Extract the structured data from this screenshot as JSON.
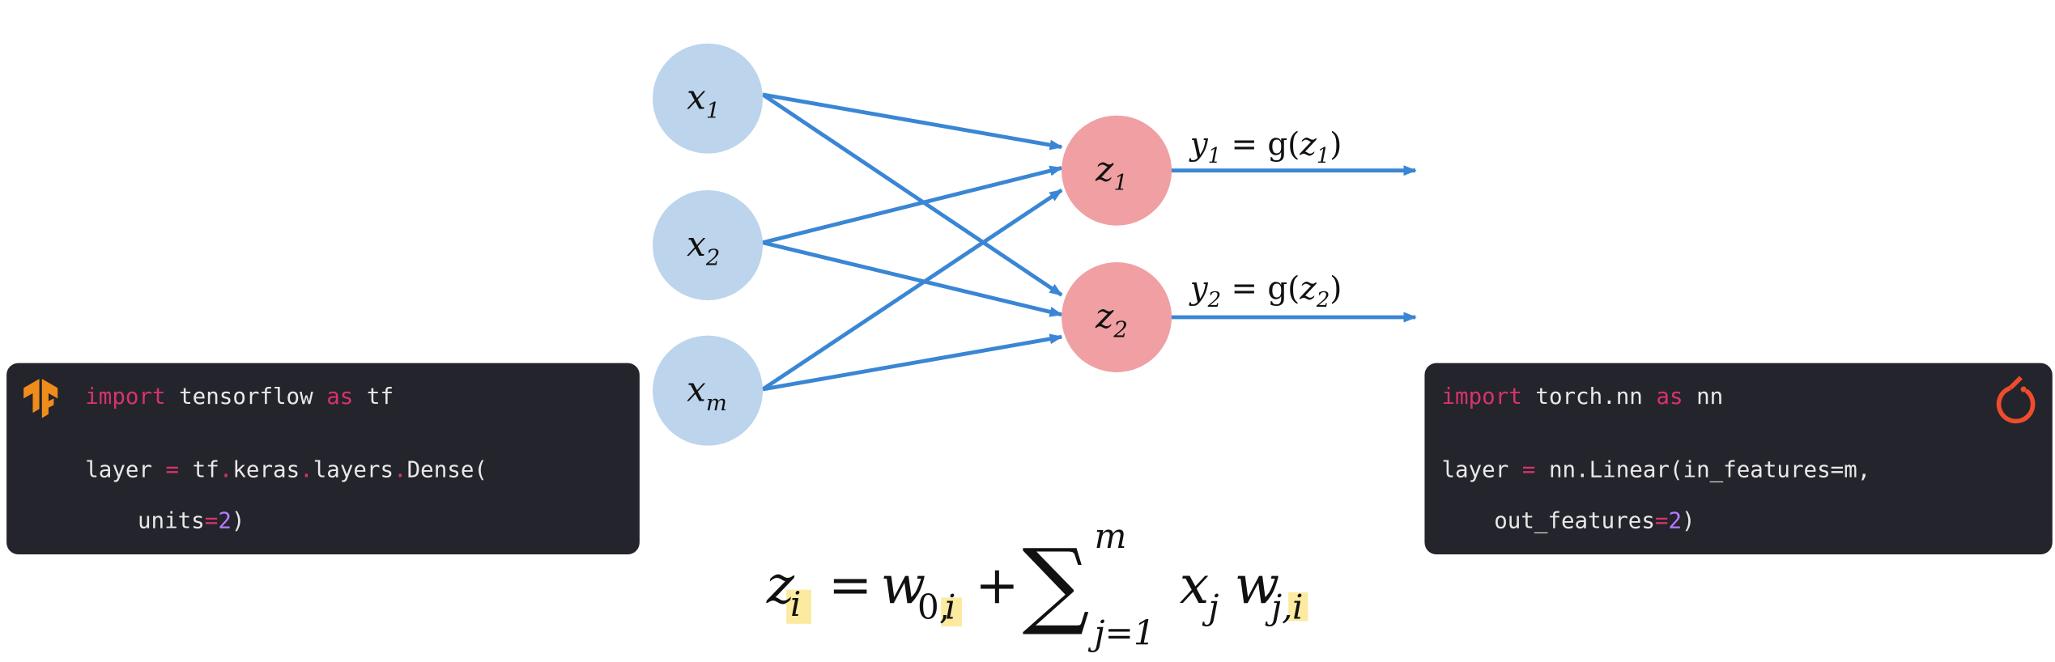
{
  "nodes": [
    {
      "label": "x",
      "sub": "1"
    },
    {
      "label": "x",
      "sub": "2"
    },
    {
      "label": "x",
      "sub": "m"
    },
    {
      "label": "z",
      "sub": "1"
    },
    {
      "label": "z",
      "sub": "2"
    }
  ],
  "outputs": [
    {
      "y": "y",
      "ysub": "1",
      "eq": " = g(",
      "z": "z",
      "zsub": "1",
      "close": ")"
    },
    {
      "y": "y",
      "ysub": "2",
      "eq": " = g(",
      "z": "z",
      "zsub": "2",
      "close": ")"
    }
  ],
  "tensorflow_code": {
    "lines": [
      [
        {
          "text": "import",
          "color": "#d6336c"
        },
        {
          "text": " tensorflow ",
          "color": "#e8e8e8"
        },
        {
          "text": "as",
          "color": "#d6336c"
        },
        {
          "text": " tf",
          "color": "#e8e8e8"
        }
      ],
      [
        {
          "text": "layer ",
          "color": "#e8e8e8"
        },
        {
          "text": "=",
          "color": "#d6336c"
        },
        {
          "text": " tf",
          "color": "#e8e8e8"
        },
        {
          "text": ".",
          "color": "#d6336c"
        },
        {
          "text": "keras",
          "color": "#e8e8e8"
        },
        {
          "text": ".",
          "color": "#d6336c"
        },
        {
          "text": "layers",
          "color": "#e8e8e8"
        },
        {
          "text": ".",
          "color": "#d6336c"
        },
        {
          "text": "Dense(",
          "color": "#e8e8e8"
        }
      ],
      [
        {
          "text": "units",
          "color": "#e8e8e8"
        },
        {
          "text": "=",
          "color": "#d6336c"
        },
        {
          "text": "2",
          "color": "#b57bff"
        },
        {
          "text": ")",
          "color": "#e8e8e8"
        }
      ]
    ]
  },
  "pytorch_code": {
    "lines": [
      [
        {
          "text": "import",
          "color": "#d6336c"
        },
        {
          "text": " torch.nn ",
          "color": "#e8e8e8"
        },
        {
          "text": "as",
          "color": "#d6336c"
        },
        {
          "text": " nn",
          "color": "#e8e8e8"
        }
      ],
      [
        {
          "text": "layer ",
          "color": "#e8e8e8"
        },
        {
          "text": "=",
          "color": "#d6336c"
        },
        {
          "text": " nn.Linear(in_features=m,",
          "color": "#e8e8e8"
        }
      ],
      [
        {
          "text": "out_features",
          "color": "#e8e8e8"
        },
        {
          "text": "=",
          "color": "#d6336c"
        },
        {
          "text": "2",
          "color": "#b57bff"
        },
        {
          "text": ")",
          "color": "#e8e8e8"
        }
      ]
    ]
  },
  "formula": {
    "lhs": "z",
    "lhs_sub": "i",
    "eq": "=",
    "w0": "w",
    "w0_sub": "0,",
    "w0_sub_i": "i",
    "plus": "+",
    "sum": "∑",
    "sum_top": "m",
    "sum_bottom": "j=1",
    "x": "x",
    "x_sub": "j",
    "w": "w",
    "w_sub": "j,",
    "w_sub_i": "i"
  }
}
